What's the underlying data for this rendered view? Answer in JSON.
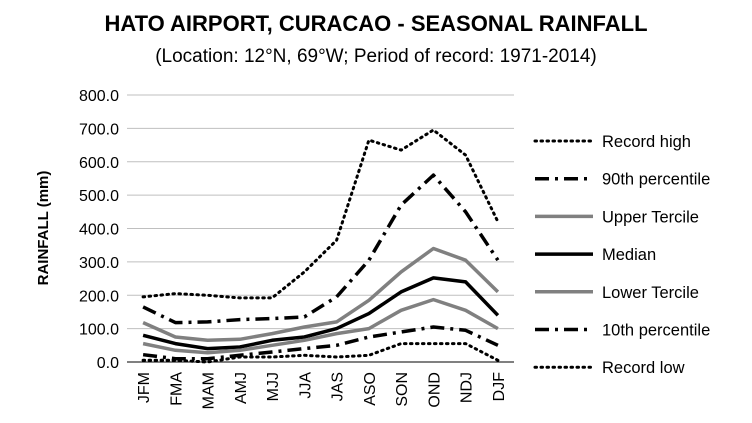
{
  "chart_data": {
    "type": "line",
    "title": "HATO AIRPORT, CURACAO - SEASONAL RAINFALL",
    "subtitle": "(Location: 12°N, 69°W; Period of record: 1971-2014)",
    "xlabel": "",
    "ylabel": "RAINFALL (mm)",
    "ylim": [
      0,
      800
    ],
    "yticks": [
      "0.0",
      "100.0",
      "200.0",
      "300.0",
      "400.0",
      "500.0",
      "600.0",
      "700.0",
      "800.0"
    ],
    "grid": true,
    "legend_position": "right",
    "categories": [
      "JFM",
      "FMA",
      "MAM",
      "AMJ",
      "MJJ",
      "JJA",
      "JAS",
      "ASO",
      "SON",
      "OND",
      "NDJ",
      "DJF"
    ],
    "series": [
      {
        "name": "Record high",
        "style": "dotted",
        "color": "#000000",
        "values": [
          195,
          205,
          200,
          192,
          192,
          270,
          365,
          665,
          635,
          695,
          620,
          420
        ]
      },
      {
        "name": "90th percentile",
        "style": "dashdot",
        "color": "#000000",
        "values": [
          165,
          118,
          120,
          127,
          130,
          135,
          195,
          305,
          470,
          560,
          450,
          305
        ]
      },
      {
        "name": "Upper Tercile",
        "style": "solid",
        "color": "#808080",
        "values": [
          118,
          75,
          65,
          68,
          85,
          105,
          120,
          185,
          270,
          340,
          305,
          210
        ]
      },
      {
        "name": "Median",
        "style": "solid",
        "color": "#000000",
        "values": [
          80,
          55,
          40,
          45,
          65,
          75,
          100,
          145,
          210,
          252,
          240,
          140
        ]
      },
      {
        "name": "Lower Tercile",
        "style": "solid",
        "color": "#808080",
        "values": [
          55,
          35,
          28,
          35,
          50,
          65,
          85,
          100,
          155,
          187,
          155,
          100
        ]
      },
      {
        "name": "10th percentile",
        "style": "dashdot",
        "color": "#000000",
        "values": [
          22,
          10,
          10,
          20,
          30,
          40,
          50,
          75,
          90,
          105,
          95,
          50
        ]
      },
      {
        "name": "Record low",
        "style": "dotted",
        "color": "#000000",
        "values": [
          5,
          5,
          0,
          15,
          15,
          20,
          15,
          20,
          55,
          55,
          55,
          5
        ]
      }
    ]
  }
}
